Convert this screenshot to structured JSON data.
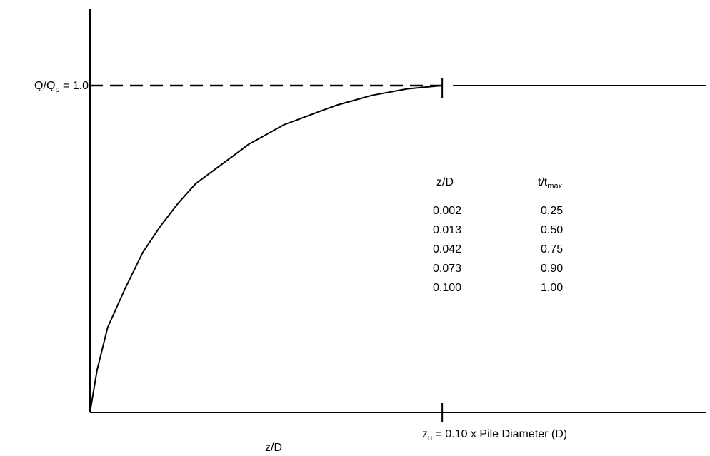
{
  "chart_data": {
    "type": "line",
    "title": "",
    "xlabel": "z/D",
    "ylabel": "",
    "xlim": [
      0,
      0.175
    ],
    "ylim": [
      0,
      1.0
    ],
    "series": [
      {
        "name": "",
        "x": [
          0,
          0.002,
          0.005,
          0.01,
          0.015,
          0.02,
          0.025,
          0.03,
          0.035,
          0.04,
          0.045,
          0.05,
          0.055,
          0.06,
          0.065,
          0.07,
          0.075,
          0.08,
          0.085,
          0.09,
          0.095,
          0.1
        ],
        "y": [
          0,
          0.13,
          0.26,
          0.38,
          0.49,
          0.57,
          0.64,
          0.7,
          0.74,
          0.78,
          0.82,
          0.85,
          0.88,
          0.9,
          0.92,
          0.94,
          0.955,
          0.97,
          0.98,
          0.99,
          0.995,
          1.0
        ]
      }
    ],
    "annotations": {
      "peak_label_main": "Q/Q",
      "peak_label_sub": "p",
      "peak_label_value": " = 1.0",
      "zu_main": "z",
      "zu_sub": "u",
      "zu_text": " = 0.10 x Pile Diameter (D)",
      "zu_value": 0.1,
      "peak_value": 1.0,
      "plateau_x_end": 0.175
    },
    "table": {
      "header_zd": "z/D",
      "header_tt_main": "t/t",
      "header_tt_sub": "max",
      "rows": [
        {
          "zd": "0.002",
          "tt": "0.25"
        },
        {
          "zd": "0.013",
          "tt": "0.50"
        },
        {
          "zd": "0.042",
          "tt": "0.75"
        },
        {
          "zd": "0.073",
          "tt": "0.90"
        },
        {
          "zd": "0.100",
          "tt": "1.00"
        }
      ]
    }
  }
}
